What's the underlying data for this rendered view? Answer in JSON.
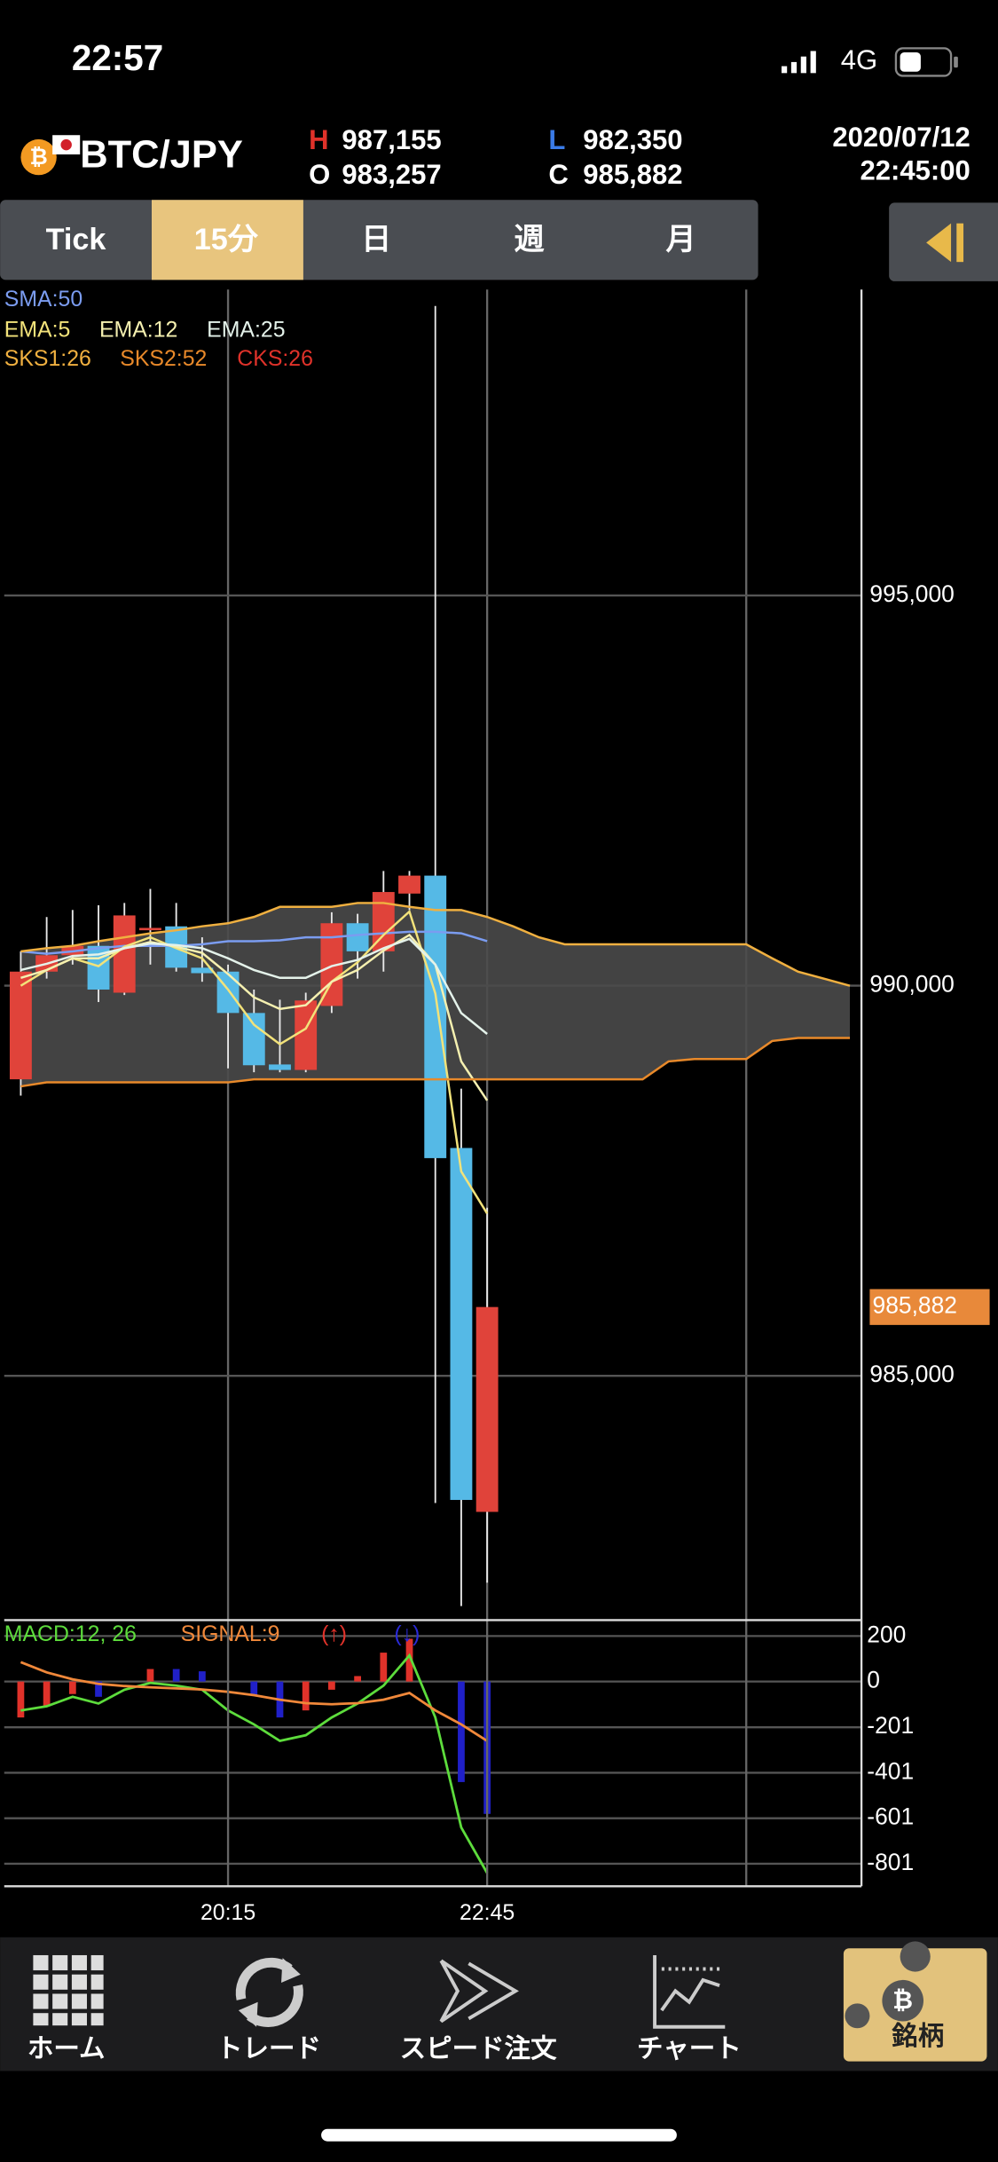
{
  "status_bar": {
    "time": "22:57",
    "network": "4G"
  },
  "header": {
    "symbol": "BTC/JPY",
    "high_label": "H",
    "high": "987,155",
    "open_label": "O",
    "open": "983,257",
    "low_label": "L",
    "low": "982,350",
    "close_label": "C",
    "close": "985,882",
    "date": "2020/07/12",
    "time": "22:45:00"
  },
  "tabs": [
    "Tick",
    "15分",
    "日",
    "週",
    "月"
  ],
  "chart_data": [
    {
      "type": "candlestick",
      "categories": [
        null,
        null,
        null,
        null,
        null,
        null,
        null,
        null,
        null,
        null,
        null,
        null,
        null,
        null,
        null,
        null,
        null,
        null,
        null,
        null,
        null,
        null,
        null,
        null,
        null,
        null,
        null,
        null,
        null,
        null,
        null,
        null,
        null
      ],
      "open": [
        988800,
        990180,
        990390,
        990510,
        989910,
        990710,
        990760,
        990230,
        990180,
        989650,
        988990,
        988920,
        989740,
        990800,
        990440,
        991180,
        991410,
        987920,
        983257,
        null,
        null,
        null,
        null,
        null,
        null,
        null,
        null,
        null,
        null,
        null,
        null,
        null,
        null
      ],
      "high": [
        990440,
        990880,
        990970,
        991030,
        991060,
        991240,
        991060,
        990620,
        990270,
        989950,
        989820,
        989910,
        990940,
        990920,
        991470,
        991470,
        998710,
        988680,
        987155,
        null,
        null,
        null,
        null,
        null,
        null,
        null,
        null,
        null,
        null,
        null,
        null,
        null,
        null
      ],
      "low": [
        988590,
        990090,
        990270,
        989790,
        989880,
        990270,
        990180,
        990050,
        988940,
        988890,
        988890,
        988890,
        989650,
        990090,
        990180,
        990970,
        983370,
        982050,
        982350,
        null,
        null,
        null,
        null,
        null,
        null,
        null,
        null,
        null,
        null,
        null,
        null,
        null,
        null
      ],
      "close": [
        990180,
        990390,
        990510,
        989950,
        990900,
        990740,
        990230,
        990160,
        989650,
        988980,
        988920,
        989810,
        990800,
        990440,
        991200,
        991410,
        987790,
        983410,
        985882,
        null,
        null,
        null,
        null,
        null,
        null,
        null,
        null,
        null,
        null,
        null,
        null,
        null,
        null
      ],
      "up_color": "#e0433a",
      "down_color": "#55b9e6",
      "series": [
        {
          "name": "SMA:50",
          "color": "#7b9cf0",
          "values": [
            990440,
            990410,
            990440,
            990480,
            990510,
            990510,
            990510,
            990530,
            990570,
            990570,
            990580,
            990620,
            990620,
            990650,
            990670,
            990690,
            990690,
            990670,
            990570,
            null,
            null,
            null,
            null,
            null,
            null,
            null,
            null,
            null,
            null,
            null,
            null,
            null,
            null
          ]
        },
        {
          "name": "EMA:5",
          "color": "#f2e27a",
          "values": [
            990000,
            990200,
            990350,
            990250,
            990500,
            990620,
            990480,
            990350,
            989950,
            989500,
            989250,
            989450,
            990050,
            990300,
            990650,
            990950,
            989900,
            987620,
            987080,
            null,
            null,
            null,
            null,
            null,
            null,
            null,
            null,
            null,
            null,
            null,
            null,
            null,
            null
          ]
        },
        {
          "name": "EMA:12",
          "color": "#f5f0b0",
          "values": [
            990100,
            990200,
            990350,
            990350,
            990480,
            990560,
            990500,
            990420,
            990150,
            989850,
            989700,
            989750,
            990050,
            990200,
            990450,
            990650,
            990270,
            989030,
            988530,
            null,
            null,
            null,
            null,
            null,
            null,
            null,
            null,
            null,
            null,
            null,
            null,
            null,
            null
          ]
        },
        {
          "name": "EMA:25",
          "color": "#e4f2ea",
          "values": [
            990200,
            990280,
            990380,
            990400,
            990480,
            990540,
            990520,
            990480,
            990350,
            990200,
            990100,
            990100,
            990250,
            990330,
            990480,
            990600,
            990270,
            989650,
            989380,
            null,
            null,
            null,
            null,
            null,
            null,
            null,
            null,
            null,
            null,
            null,
            null,
            null,
            null
          ]
        },
        {
          "name": "SKS1:26",
          "color": "#f0b040",
          "values": [
            990440,
            990480,
            990510,
            990570,
            990620,
            990670,
            990710,
            990760,
            990800,
            990880,
            991010,
            991010,
            991010,
            991060,
            991060,
            991010,
            990970,
            990970,
            990880,
            990760,
            990620,
            990530,
            990530,
            990530,
            990530,
            990530,
            990530,
            990530,
            990530,
            990350,
            990180,
            990090,
            990000
          ]
        },
        {
          "name": "SKS2:52",
          "color": "#e8892a",
          "values": [
            988710,
            988760,
            988760,
            988760,
            988760,
            988760,
            988760,
            988760,
            988760,
            988800,
            988800,
            988800,
            988800,
            988800,
            988800,
            988800,
            988800,
            988800,
            988800,
            988800,
            988800,
            988800,
            988800,
            988800,
            988800,
            989030,
            989060,
            989060,
            989060,
            989290,
            989330,
            989330,
            989330
          ]
        },
        {
          "name": "CKS:26",
          "color": "#e0322a",
          "values": [
            null,
            null,
            null,
            null,
            null,
            null,
            null,
            null,
            null,
            null,
            null,
            null,
            null,
            null,
            null,
            null,
            null,
            null,
            null,
            null,
            null,
            null,
            null,
            null,
            null,
            null,
            null,
            null,
            null,
            null,
            null,
            null,
            null
          ]
        }
      ],
      "cloud_color": "#4a4a4a",
      "ylim": [
        981870,
        998920
      ],
      "yticks": [
        {
          "value": 985000,
          "label": "985,000"
        },
        {
          "value": 990000,
          "label": "990,000"
        },
        {
          "value": 995000,
          "label": "995,000"
        }
      ],
      "last_price": {
        "value": 985882,
        "label": "985,882"
      },
      "last_price_color": "#e8893a",
      "grid": true
    },
    {
      "type": "macd",
      "categories": [
        null,
        null,
        null,
        null,
        null,
        null,
        null,
        null,
        "20:15",
        null,
        null,
        null,
        null,
        null,
        null,
        null,
        null,
        null,
        "22:45",
        null,
        null,
        null,
        null,
        null,
        null,
        null,
        null,
        null,
        null,
        null,
        null,
        null,
        null
      ],
      "series": [
        {
          "name": "MACD:12, 26",
          "color": "#5ddc3c",
          "values": [
            -127,
            -109,
            -67,
            -97,
            -36,
            -6,
            -18,
            -36,
            -127,
            -188,
            -261,
            -236,
            -158,
            -97,
            -18,
            115,
            -158,
            -642,
            -842,
            null,
            null,
            null,
            null,
            null,
            null,
            null,
            null,
            null,
            null,
            null,
            null,
            null,
            null
          ]
        },
        {
          "name": "SIGNAL:9",
          "color": "#f0883a",
          "values": [
            85,
            40,
            10,
            -10,
            -20,
            -25,
            -30,
            -35,
            -45,
            -60,
            -80,
            -95,
            -100,
            -95,
            -80,
            -50,
            -127,
            -188,
            -261,
            null,
            null,
            null,
            null,
            null,
            null,
            null,
            null,
            null,
            null,
            null,
            null,
            null,
            null
          ]
        }
      ],
      "histogram": {
        "values": [
          -158,
          -109,
          -55,
          -67,
          0,
          55,
          55,
          45,
          0,
          -60,
          -158,
          -127,
          -36,
          24,
          127,
          188,
          0,
          -442,
          -582,
          null,
          null,
          null,
          null,
          null,
          null,
          null,
          null,
          null,
          null,
          null,
          null,
          null,
          null
        ],
        "colors": [
          "#e0322a",
          "#e0322a",
          "#e0322a",
          "#2020c8",
          "#e0322a",
          "#e0322a",
          "#2020c8",
          "#2020c8",
          "#2020c8",
          "#2020c8",
          "#2020c8",
          "#e0322a",
          "#e0322a",
          "#e0322a",
          "#e0322a",
          "#e0322a",
          "#e0322a",
          "#2020c8",
          "#2020c8",
          null,
          null,
          null,
          null,
          null,
          null,
          null,
          null,
          null,
          null,
          null,
          null,
          null,
          null
        ]
      },
      "annotations": [
        {
          "text": "(↑)",
          "color": "#e0322a"
        },
        {
          "text": "(↓)",
          "color": "#2a2ad8"
        }
      ],
      "ylim": [
        -900,
        270
      ],
      "yticks": [
        200,
        0,
        -201,
        -401,
        -601,
        -801
      ],
      "grid": true
    }
  ],
  "nav": [
    "ホーム",
    "トレード",
    "スピード注文",
    "チャート",
    "銘柄"
  ]
}
